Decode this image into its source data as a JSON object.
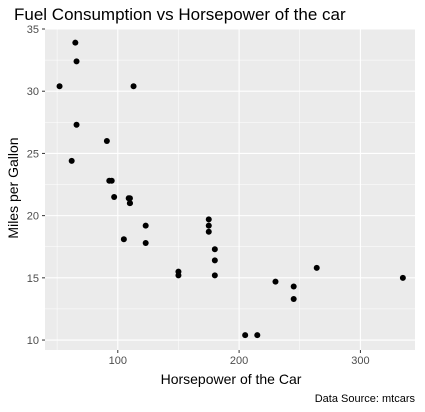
{
  "chart_data": {
    "type": "scatter",
    "title": "Fuel Consumption vs Horsepower of the car",
    "xlabel": "Horsepower of the Car",
    "ylabel": "Miles per Gallon",
    "caption": "Data Source: mtcars",
    "xlim": [
      40,
      345
    ],
    "ylim": [
      9.2,
      35
    ],
    "x_ticks": [
      100,
      200,
      300
    ],
    "y_ticks": [
      10,
      15,
      20,
      25,
      30,
      35
    ],
    "grid": true,
    "legend": "none",
    "colors": {
      "panel": "#ebebeb",
      "grid_major": "#ffffff",
      "point": "#000000",
      "tick_label": "#4d4d4d"
    },
    "points": [
      {
        "x": 110,
        "y": 21.0
      },
      {
        "x": 110,
        "y": 21.0
      },
      {
        "x": 93,
        "y": 22.8
      },
      {
        "x": 110,
        "y": 21.4
      },
      {
        "x": 175,
        "y": 18.7
      },
      {
        "x": 105,
        "y": 18.1
      },
      {
        "x": 245,
        "y": 14.3
      },
      {
        "x": 62,
        "y": 24.4
      },
      {
        "x": 95,
        "y": 22.8
      },
      {
        "x": 123,
        "y": 19.2
      },
      {
        "x": 123,
        "y": 17.8
      },
      {
        "x": 180,
        "y": 16.4
      },
      {
        "x": 180,
        "y": 17.3
      },
      {
        "x": 180,
        "y": 15.2
      },
      {
        "x": 205,
        "y": 10.4
      },
      {
        "x": 215,
        "y": 10.4
      },
      {
        "x": 230,
        "y": 14.7
      },
      {
        "x": 66,
        "y": 32.4
      },
      {
        "x": 52,
        "y": 30.4
      },
      {
        "x": 65,
        "y": 33.9
      },
      {
        "x": 97,
        "y": 21.5
      },
      {
        "x": 150,
        "y": 15.5
      },
      {
        "x": 150,
        "y": 15.2
      },
      {
        "x": 245,
        "y": 13.3
      },
      {
        "x": 175,
        "y": 19.2
      },
      {
        "x": 66,
        "y": 27.3
      },
      {
        "x": 91,
        "y": 26.0
      },
      {
        "x": 113,
        "y": 30.4
      },
      {
        "x": 264,
        "y": 15.8
      },
      {
        "x": 175,
        "y": 19.7
      },
      {
        "x": 335,
        "y": 15.0
      },
      {
        "x": 109,
        "y": 21.4
      }
    ]
  }
}
